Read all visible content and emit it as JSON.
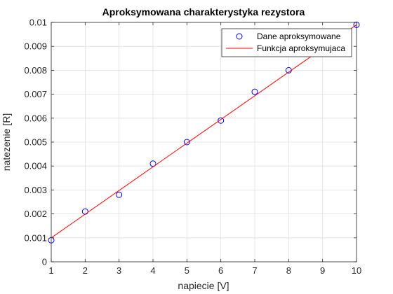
{
  "chart_data": {
    "type": "scatter",
    "title": "Aproksymowana charakterystyka rezystora",
    "xlabel": "napiecie [V]",
    "ylabel": "natezenie [R]",
    "xlim": [
      1,
      10
    ],
    "ylim": [
      0,
      0.01
    ],
    "xticks": [
      "1",
      "2",
      "3",
      "4",
      "5",
      "6",
      "7",
      "8",
      "9",
      "10"
    ],
    "yticks": [
      "0",
      "0.001",
      "0.002",
      "0.003",
      "0.004",
      "0.005",
      "0.006",
      "0.007",
      "0.008",
      "0.009",
      "0.01"
    ],
    "grid": true,
    "legend_position": "top-right",
    "series": [
      {
        "name": "Dane aproksymowane",
        "kind": "markers",
        "marker": "circle",
        "color": "#0000ff",
        "x": [
          1,
          2,
          3,
          4,
          5,
          6,
          7,
          8,
          10
        ],
        "y": [
          0.0009,
          0.0021,
          0.0028,
          0.0041,
          0.005,
          0.0059,
          0.0071,
          0.008,
          0.0099
        ]
      },
      {
        "name": "Funkcja aproksymujaca",
        "kind": "line",
        "color": "#ff0000",
        "x": [
          1,
          10
        ],
        "y": [
          0.001,
          0.0099
        ]
      }
    ]
  }
}
